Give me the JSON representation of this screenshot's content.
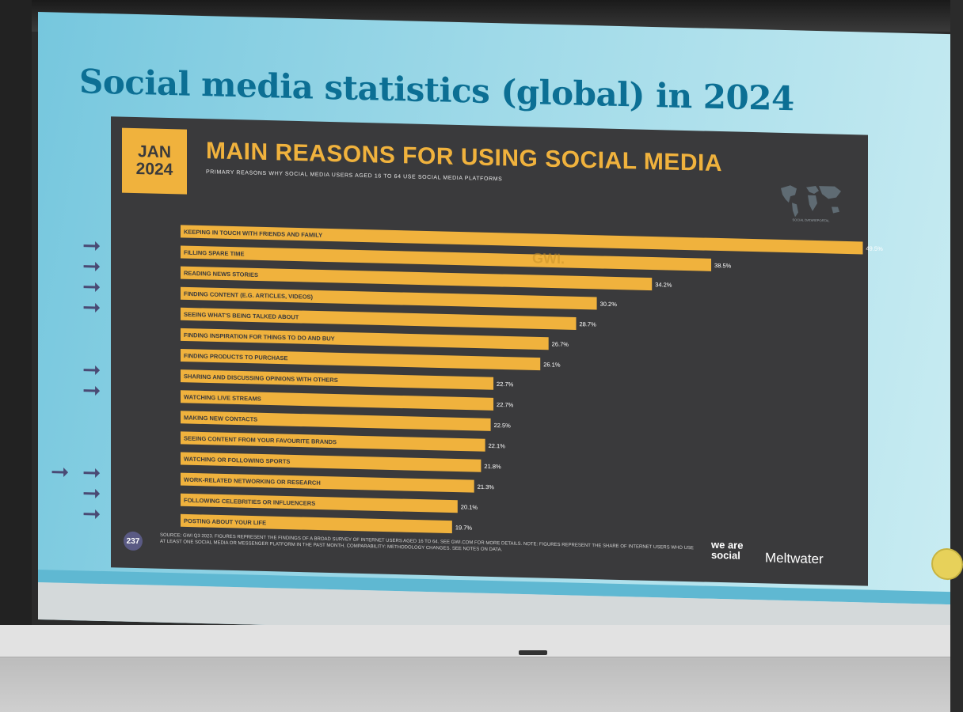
{
  "slide": {
    "title": "Social media statistics (global) in 2024"
  },
  "panel": {
    "date_line1": "JAN",
    "date_line2": "2024",
    "page_number": "237",
    "source_note": "SOURCE: GWI Q3 2023. FIGURES REPRESENT THE FINDINGS OF A BROAD SURVEY OF INTERNET USERS AGED 16 TO 64. SEE GWI.COM FOR MORE DETAILS. NOTE: FIGURES REPRESENT THE SHARE OF INTERNET USERS WHO USE AT LEAST ONE SOCIAL MEDIA OR MESSENGER PLATFORM IN THE PAST MONTH. COMPARABILITY: METHODOLOGY CHANGES. SEE NOTES ON DATA.",
    "brand_1": "we are social",
    "brand_2": "Meltwater",
    "map_label": "SOCIAL DATAREPORTAL",
    "watermark": "GWI."
  },
  "colors": {
    "bar": "#f0b23d",
    "panel_bg": "#3a3a3c",
    "title": "#0c6f94",
    "arrow": "#4a4a74"
  },
  "chart_data": {
    "type": "bar",
    "orientation": "horizontal",
    "title": "MAIN REASONS FOR USING SOCIAL MEDIA",
    "subtitle": "PRIMARY REASONS WHY SOCIAL MEDIA USERS AGED 16 TO 64 USE SOCIAL MEDIA PLATFORMS",
    "categories": [
      "KEEPING IN TOUCH WITH FRIENDS AND FAMILY",
      "FILLING SPARE TIME",
      "READING NEWS STORIES",
      "FINDING CONTENT (E.G. ARTICLES, VIDEOS)",
      "SEEING WHAT'S BEING TALKED ABOUT",
      "FINDING INSPIRATION FOR THINGS TO DO AND BUY",
      "FINDING PRODUCTS TO PURCHASE",
      "SHARING AND DISCUSSING OPINIONS WITH OTHERS",
      "WATCHING LIVE STREAMS",
      "MAKING NEW CONTACTS",
      "SEEING CONTENT FROM YOUR FAVOURITE BRANDS",
      "WATCHING OR FOLLOWING SPORTS",
      "WORK-RELATED NETWORKING OR RESEARCH",
      "FOLLOWING CELEBRITIES OR INFLUENCERS",
      "POSTING ABOUT YOUR LIFE"
    ],
    "values": [
      49.5,
      38.5,
      34.2,
      30.2,
      28.7,
      26.7,
      26.1,
      22.7,
      22.7,
      22.5,
      22.1,
      21.8,
      21.3,
      20.1,
      19.7
    ],
    "value_labels": [
      "49.5%",
      "38.5%",
      "34.2%",
      "30.2%",
      "28.7%",
      "26.7%",
      "26.1%",
      "22.7%",
      "22.7%",
      "22.5%",
      "22.1%",
      "21.8%",
      "21.3%",
      "20.1%",
      "19.7%"
    ],
    "xlim": [
      0,
      52
    ],
    "arrows": [
      0,
      1,
      1,
      1,
      1,
      0,
      0,
      1,
      1,
      0,
      0,
      0,
      2,
      1,
      1
    ]
  }
}
